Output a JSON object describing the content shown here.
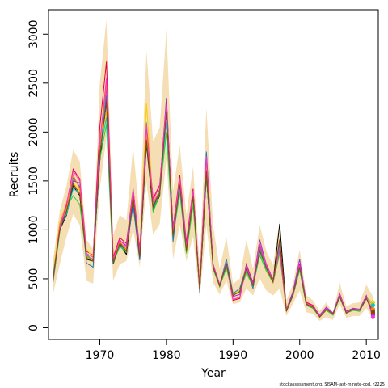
{
  "chart_data": {
    "type": "line",
    "xlabel": "Year",
    "ylabel": "Recruits",
    "xlim": [
      1962.3,
      2011.8
    ],
    "ylim": [
      -120,
      3250
    ],
    "x_ticks": [
      1970,
      1980,
      1990,
      2000,
      2010
    ],
    "y_ticks": [
      0,
      500,
      1000,
      1500,
      2000,
      2500,
      3000
    ],
    "grid": false,
    "legend": "none",
    "footnote": "stockassessment.org, SISAM-last-minute-cod, r2225",
    "band_color": "#f5deb3",
    "band": {
      "x": [
        1963,
        1964,
        1965,
        1966,
        1967,
        1968,
        1969,
        1970,
        1971,
        1972,
        1973,
        1974,
        1975,
        1976,
        1977,
        1978,
        1979,
        1980,
        1981,
        1982,
        1983,
        1984,
        1985,
        1986,
        1987,
        1988,
        1989,
        1990,
        1991,
        1992,
        1993,
        1994,
        1995,
        1996,
        1997,
        1998,
        1999,
        2000,
        2001,
        2002,
        2003,
        2004,
        2005,
        2006,
        2007,
        2008,
        2009,
        2010,
        2011
      ],
      "lower": [
        350,
        650,
        930,
        1160,
        1050,
        480,
        450,
        1420,
        1950,
        480,
        650,
        680,
        1000,
        620,
        1480,
        950,
        1060,
        1720,
        700,
        1050,
        680,
        930,
        300,
        1050,
        460,
        340,
        480,
        240,
        260,
        400,
        330,
        500,
        380,
        330,
        400,
        120,
        250,
        380,
        160,
        140,
        70,
        110,
        80,
        240,
        100,
        120,
        120,
        200,
        90
      ],
      "upper": [
        700,
        1200,
        1450,
        1820,
        1700,
        900,
        800,
        2500,
        3150,
        950,
        1150,
        1100,
        1850,
        1100,
        2830,
        1900,
        2050,
        3050,
        1400,
        1870,
        1150,
        1650,
        640,
        2250,
        1050,
        600,
        930,
        450,
        500,
        900,
        600,
        1050,
        780,
        640,
        1100,
        280,
        450,
        800,
        330,
        280,
        170,
        260,
        150,
        460,
        220,
        250,
        260,
        440,
        320
      ]
    },
    "series": [
      {
        "color": "#000000",
        "values": [
          480,
          1000,
          1150,
          1450,
          1350,
          700,
          680,
          1700,
          2320,
          650,
          850,
          750,
          1300,
          700,
          1880,
          1200,
          1350,
          2330,
          950,
          1450,
          800,
          1350,
          380,
          1550,
          620,
          420,
          620,
          330,
          380,
          600,
          420,
          780,
          600,
          470,
          1060,
          170,
          330,
          600,
          230,
          200,
          110,
          180,
          130,
          320,
          150,
          180,
          170,
          300,
          170
        ]
      },
      {
        "color": "#e00040",
        "values": [
          500,
          1050,
          1250,
          1620,
          1520,
          780,
          740,
          2050,
          2720,
          720,
          920,
          860,
          1420,
          800,
          2060,
          1320,
          1460,
          2300,
          1020,
          1560,
          870,
          1420,
          420,
          1780,
          650,
          440,
          650,
          280,
          300,
          650,
          460,
          850,
          650,
          490,
          780,
          170,
          350,
          650,
          260,
          230,
          120,
          200,
          140,
          340,
          160,
          190,
          180,
          320,
          150
        ]
      },
      {
        "color": "#ffcc00",
        "values": [
          560,
          1080,
          1280,
          1480,
          1400,
          800,
          720,
          1830,
          2200,
          700,
          860,
          790,
          1330,
          740,
          2300,
          1260,
          1410,
          2180,
          960,
          1480,
          760,
          1300,
          400,
          1650,
          610,
          430,
          640,
          340,
          380,
          580,
          430,
          760,
          600,
          460,
          760,
          180,
          340,
          620,
          240,
          210,
          110,
          190,
          140,
          320,
          160,
          190,
          180,
          310,
          260
        ]
      },
      {
        "color": "#33cc33",
        "values": [
          470,
          980,
          1230,
          1350,
          1260,
          720,
          700,
          1720,
          2080,
          660,
          830,
          770,
          1400,
          720,
          2100,
          1180,
          1370,
          2000,
          920,
          1380,
          760,
          1250,
          390,
          1580,
          600,
          420,
          610,
          340,
          360,
          560,
          420,
          740,
          580,
          460,
          760,
          170,
          330,
          590,
          230,
          200,
          110,
          180,
          130,
          310,
          150,
          180,
          170,
          300,
          180
        ]
      },
      {
        "color": "#1f77b4",
        "values": [
          490,
          1010,
          1180,
          1530,
          1440,
          660,
          620,
          1760,
          2380,
          660,
          870,
          800,
          1250,
          690,
          1900,
          1250,
          1380,
          2280,
          880,
          1500,
          820,
          1400,
          360,
          1800,
          630,
          430,
          700,
          350,
          400,
          620,
          400,
          820,
          620,
          480,
          880,
          180,
          360,
          630,
          240,
          210,
          120,
          190,
          140,
          330,
          150,
          190,
          180,
          300,
          170
        ]
      },
      {
        "color": "#9933cc",
        "values": [
          520,
          1040,
          1200,
          1500,
          1480,
          750,
          690,
          1880,
          2450,
          700,
          890,
          840,
          1380,
          760,
          1950,
          1230,
          1420,
          2350,
          990,
          1520,
          840,
          1380,
          410,
          1700,
          640,
          440,
          660,
          320,
          340,
          640,
          450,
          900,
          640,
          490,
          850,
          190,
          370,
          700,
          250,
          220,
          130,
          210,
          150,
          350,
          170,
          200,
          190,
          330,
          130
        ]
      },
      {
        "color": "#00cccc",
        "values": [
          540,
          1020,
          1160,
          1420,
          1380,
          740,
          700,
          1790,
          2150,
          690,
          840,
          780,
          1360,
          740,
          2000,
          1210,
          1390,
          2100,
          940,
          1420,
          780,
          1330,
          400,
          1600,
          620,
          430,
          640,
          330,
          370,
          590,
          420,
          770,
          600,
          480,
          820,
          180,
          340,
          610,
          240,
          210,
          110,
          190,
          140,
          320,
          160,
          190,
          180,
          310,
          230
        ]
      },
      {
        "color": "#ff7f0e",
        "values": [
          505,
          1060,
          1210,
          1560,
          1420,
          730,
          700,
          1850,
          2500,
          690,
          880,
          800,
          1390,
          750,
          1980,
          1280,
          1400,
          2250,
          980,
          1490,
          800,
          1370,
          390,
          1690,
          630,
          430,
          660,
          330,
          370,
          610,
          430,
          800,
          610,
          470,
          900,
          180,
          340,
          630,
          240,
          210,
          120,
          190,
          140,
          330,
          160,
          190,
          180,
          310,
          190
        ]
      },
      {
        "color": "#ff33cc",
        "values": [
          495,
          1030,
          1270,
          1600,
          1500,
          760,
          720,
          1900,
          2550,
          700,
          900,
          820,
          1410,
          770,
          2080,
          1300,
          1450,
          2280,
          1000,
          1530,
          830,
          1400,
          410,
          1750,
          640,
          440,
          660,
          290,
          310,
          620,
          440,
          860,
          640,
          480,
          800,
          170,
          340,
          640,
          250,
          220,
          120,
          200,
          140,
          340,
          160,
          190,
          180,
          310,
          110
        ]
      },
      {
        "color": "#8b4513",
        "values": [
          515,
          1000,
          1190,
          1470,
          1370,
          710,
          680,
          1780,
          2300,
          670,
          860,
          780,
          1340,
          720,
          1920,
          1230,
          1380,
          2200,
          940,
          1460,
          790,
          1340,
          390,
          1600,
          620,
          430,
          650,
          330,
          370,
          600,
          430,
          790,
          610,
          470,
          900,
          170,
          340,
          620,
          240,
          210,
          110,
          190,
          140,
          320,
          150,
          190,
          180,
          300,
          160
        ]
      }
    ]
  }
}
